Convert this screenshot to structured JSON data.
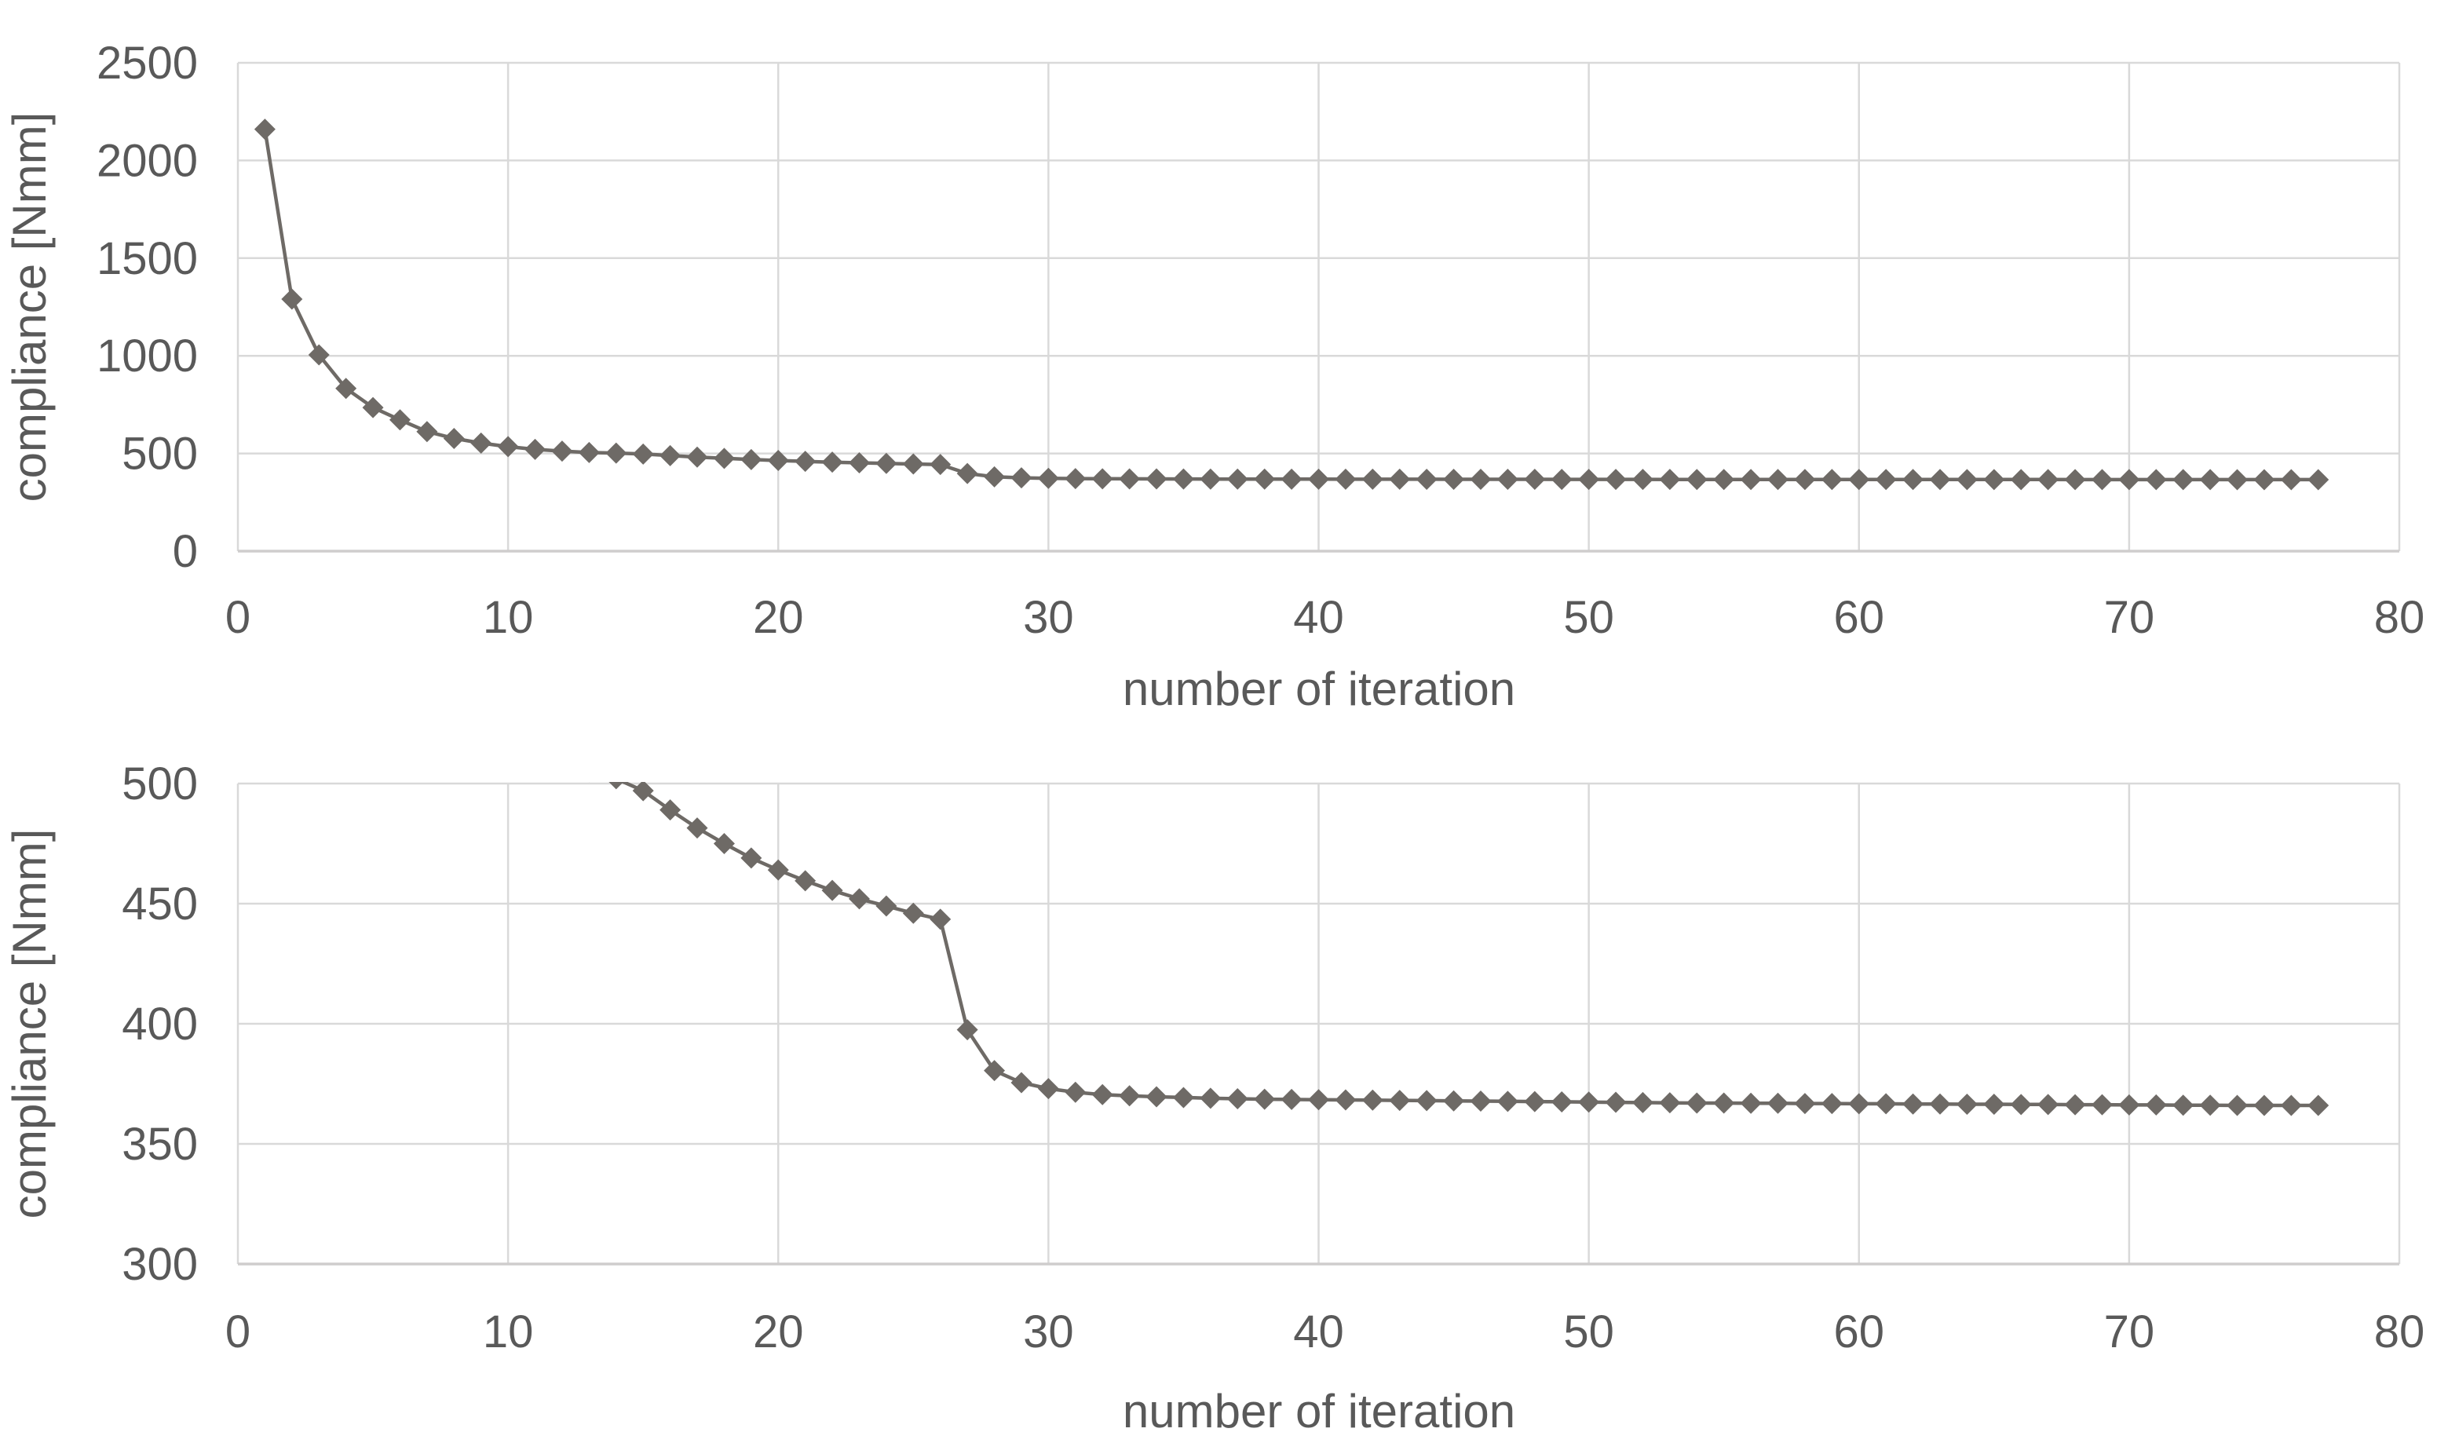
{
  "page": {
    "background": "#ffffff"
  },
  "colors": {
    "series": "#6e6a66",
    "gridline": "#d9d9d9",
    "axis_line": "#cfcdcd",
    "text": "#595959"
  },
  "chart_data": [
    {
      "type": "line",
      "name": "compliance-vs-iteration-full-range",
      "title": "",
      "xlabel": "number of iteration",
      "ylabel": "compliance [Nmm]",
      "xlim": [
        0,
        80
      ],
      "ylim": [
        0,
        2500
      ],
      "xticks": [
        0,
        10,
        20,
        30,
        40,
        50,
        60,
        70,
        80
      ],
      "yticks": [
        0,
        500,
        1000,
        1500,
        2000,
        2500
      ],
      "grid": true,
      "legend": false,
      "marker": "diamond",
      "x": [
        1,
        2,
        3,
        4,
        5,
        6,
        7,
        8,
        9,
        10,
        11,
        12,
        13,
        14,
        15,
        16,
        17,
        18,
        19,
        20,
        21,
        22,
        23,
        24,
        25,
        26,
        27,
        28,
        29,
        30,
        31,
        32,
        33,
        34,
        35,
        36,
        37,
        38,
        39,
        40,
        41,
        42,
        43,
        44,
        45,
        46,
        47,
        48,
        49,
        50,
        51,
        52,
        53,
        54,
        55,
        56,
        57,
        58,
        59,
        60,
        61,
        62,
        63,
        64,
        65,
        66,
        67,
        68,
        69,
        70,
        71,
        72,
        73,
        74,
        75,
        76,
        77
      ],
      "y": [
        2160,
        1290,
        1005,
        833,
        735,
        672,
        612,
        577,
        553,
        535,
        521,
        512,
        505,
        502,
        497,
        489,
        481.5,
        475,
        469,
        464,
        459.5,
        455.5,
        452,
        449,
        446,
        443.5,
        397.5,
        380.5,
        375.5,
        373,
        371.5,
        370.5,
        370,
        369.6,
        369.3,
        369,
        368.8,
        368.6,
        368.5,
        368.4,
        368.3,
        368.2,
        368.1,
        368,
        367.9,
        367.8,
        367.7,
        367.6,
        367.5,
        367.4,
        367.3,
        367.2,
        367.1,
        367,
        367,
        366.9,
        366.9,
        366.8,
        366.8,
        366.7,
        366.7,
        366.6,
        366.6,
        366.5,
        366.5,
        366.4,
        366.4,
        366.3,
        366.3,
        366.2,
        366.2,
        366.1,
        366.1,
        366,
        366,
        366,
        366
      ]
    },
    {
      "type": "line",
      "name": "compliance-vs-iteration-zoomed",
      "title": "",
      "xlabel": "number of iteration",
      "ylabel": "compliance [Nmm]",
      "xlim": [
        0,
        80
      ],
      "ylim": [
        300,
        500
      ],
      "xticks": [
        0,
        10,
        20,
        30,
        40,
        50,
        60,
        70,
        80
      ],
      "yticks": [
        300,
        350,
        400,
        450,
        500
      ],
      "grid": true,
      "legend": false,
      "marker": "diamond",
      "note": "same series as full-range chart; points above ylim max are clipped out of view",
      "x": [
        1,
        2,
        3,
        4,
        5,
        6,
        7,
        8,
        9,
        10,
        11,
        12,
        13,
        14,
        15,
        16,
        17,
        18,
        19,
        20,
        21,
        22,
        23,
        24,
        25,
        26,
        27,
        28,
        29,
        30,
        31,
        32,
        33,
        34,
        35,
        36,
        37,
        38,
        39,
        40,
        41,
        42,
        43,
        44,
        45,
        46,
        47,
        48,
        49,
        50,
        51,
        52,
        53,
        54,
        55,
        56,
        57,
        58,
        59,
        60,
        61,
        62,
        63,
        64,
        65,
        66,
        67,
        68,
        69,
        70,
        71,
        72,
        73,
        74,
        75,
        76,
        77
      ],
      "y": [
        2160,
        1290,
        1005,
        833,
        735,
        672,
        612,
        577,
        553,
        535,
        521,
        512,
        505,
        502,
        497,
        489,
        481.5,
        475,
        469,
        464,
        459.5,
        455.5,
        452,
        449,
        446,
        443.5,
        397.5,
        380.5,
        375.5,
        373,
        371.5,
        370.5,
        370,
        369.6,
        369.3,
        369,
        368.8,
        368.6,
        368.5,
        368.4,
        368.3,
        368.2,
        368.1,
        368,
        367.9,
        367.8,
        367.7,
        367.6,
        367.5,
        367.4,
        367.3,
        367.2,
        367.1,
        367,
        367,
        366.9,
        366.9,
        366.8,
        366.8,
        366.7,
        366.7,
        366.6,
        366.6,
        366.5,
        366.5,
        366.4,
        366.4,
        366.3,
        366.3,
        366.2,
        366.2,
        366.1,
        366.1,
        366,
        366,
        366,
        366
      ]
    }
  ]
}
